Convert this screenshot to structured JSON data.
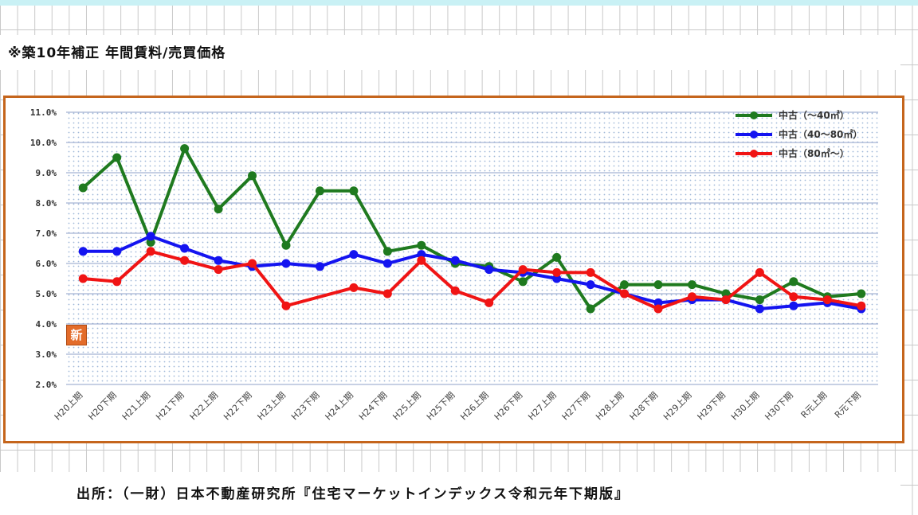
{
  "title": "※築10年補正 年間賃料/売買価格",
  "source": "出所：（一財）日本不動産研究所『住宅マーケットインデックス令和元年下期版』",
  "badge": "新",
  "colors": {
    "frame": "#c5651c",
    "green": "#1f7a1f",
    "blue": "#1414f0",
    "red": "#f01414"
  },
  "chart_data": {
    "type": "line",
    "title": "",
    "xlabel": "",
    "ylabel": "",
    "ylim": [
      2.0,
      11.0
    ],
    "yticks": [
      "2.0%",
      "3.0%",
      "4.0%",
      "5.0%",
      "6.0%",
      "7.0%",
      "8.0%",
      "9.0%",
      "10.0%",
      "11.0%"
    ],
    "grid": true,
    "legend_position": "top-right",
    "categories": [
      "H20上期",
      "H20下期",
      "H21上期",
      "H21下期",
      "H22上期",
      "H22下期",
      "H23上期",
      "H23下期",
      "H24上期",
      "H24下期",
      "H25上期",
      "H25下期",
      "H26上期",
      "H26下期",
      "H27上期",
      "H27下期",
      "H28上期",
      "H28下期",
      "H29上期",
      "H29下期",
      "H30上期",
      "H30下期",
      "R元上期",
      "R元下期"
    ],
    "series": [
      {
        "name": "中古（～40㎡）",
        "color": "#1f7a1f",
        "values": [
          8.5,
          9.5,
          6.7,
          9.8,
          7.8,
          8.9,
          6.6,
          8.4,
          8.4,
          6.4,
          6.6,
          6.0,
          5.9,
          5.4,
          6.2,
          4.5,
          5.3,
          5.3,
          5.3,
          5.0,
          4.8,
          5.4,
          4.9,
          5.0
        ]
      },
      {
        "name": "中古（40～80㎡）",
        "color": "#1414f0",
        "values": [
          6.4,
          6.4,
          6.9,
          6.5,
          6.1,
          5.9,
          6.0,
          5.9,
          6.3,
          6.0,
          6.3,
          6.1,
          5.8,
          5.7,
          5.5,
          5.3,
          5.0,
          4.7,
          4.8,
          4.8,
          4.5,
          4.6,
          4.7,
          4.5
        ]
      },
      {
        "name": "中古（80㎡～）",
        "color": "#f01414",
        "values": [
          5.5,
          5.4,
          6.4,
          6.1,
          5.8,
          6.0,
          4.6,
          null,
          5.2,
          5.0,
          6.1,
          5.1,
          4.7,
          5.8,
          5.7,
          5.7,
          5.0,
          4.5,
          4.9,
          4.8,
          5.7,
          4.9,
          4.8,
          4.6
        ]
      }
    ]
  }
}
